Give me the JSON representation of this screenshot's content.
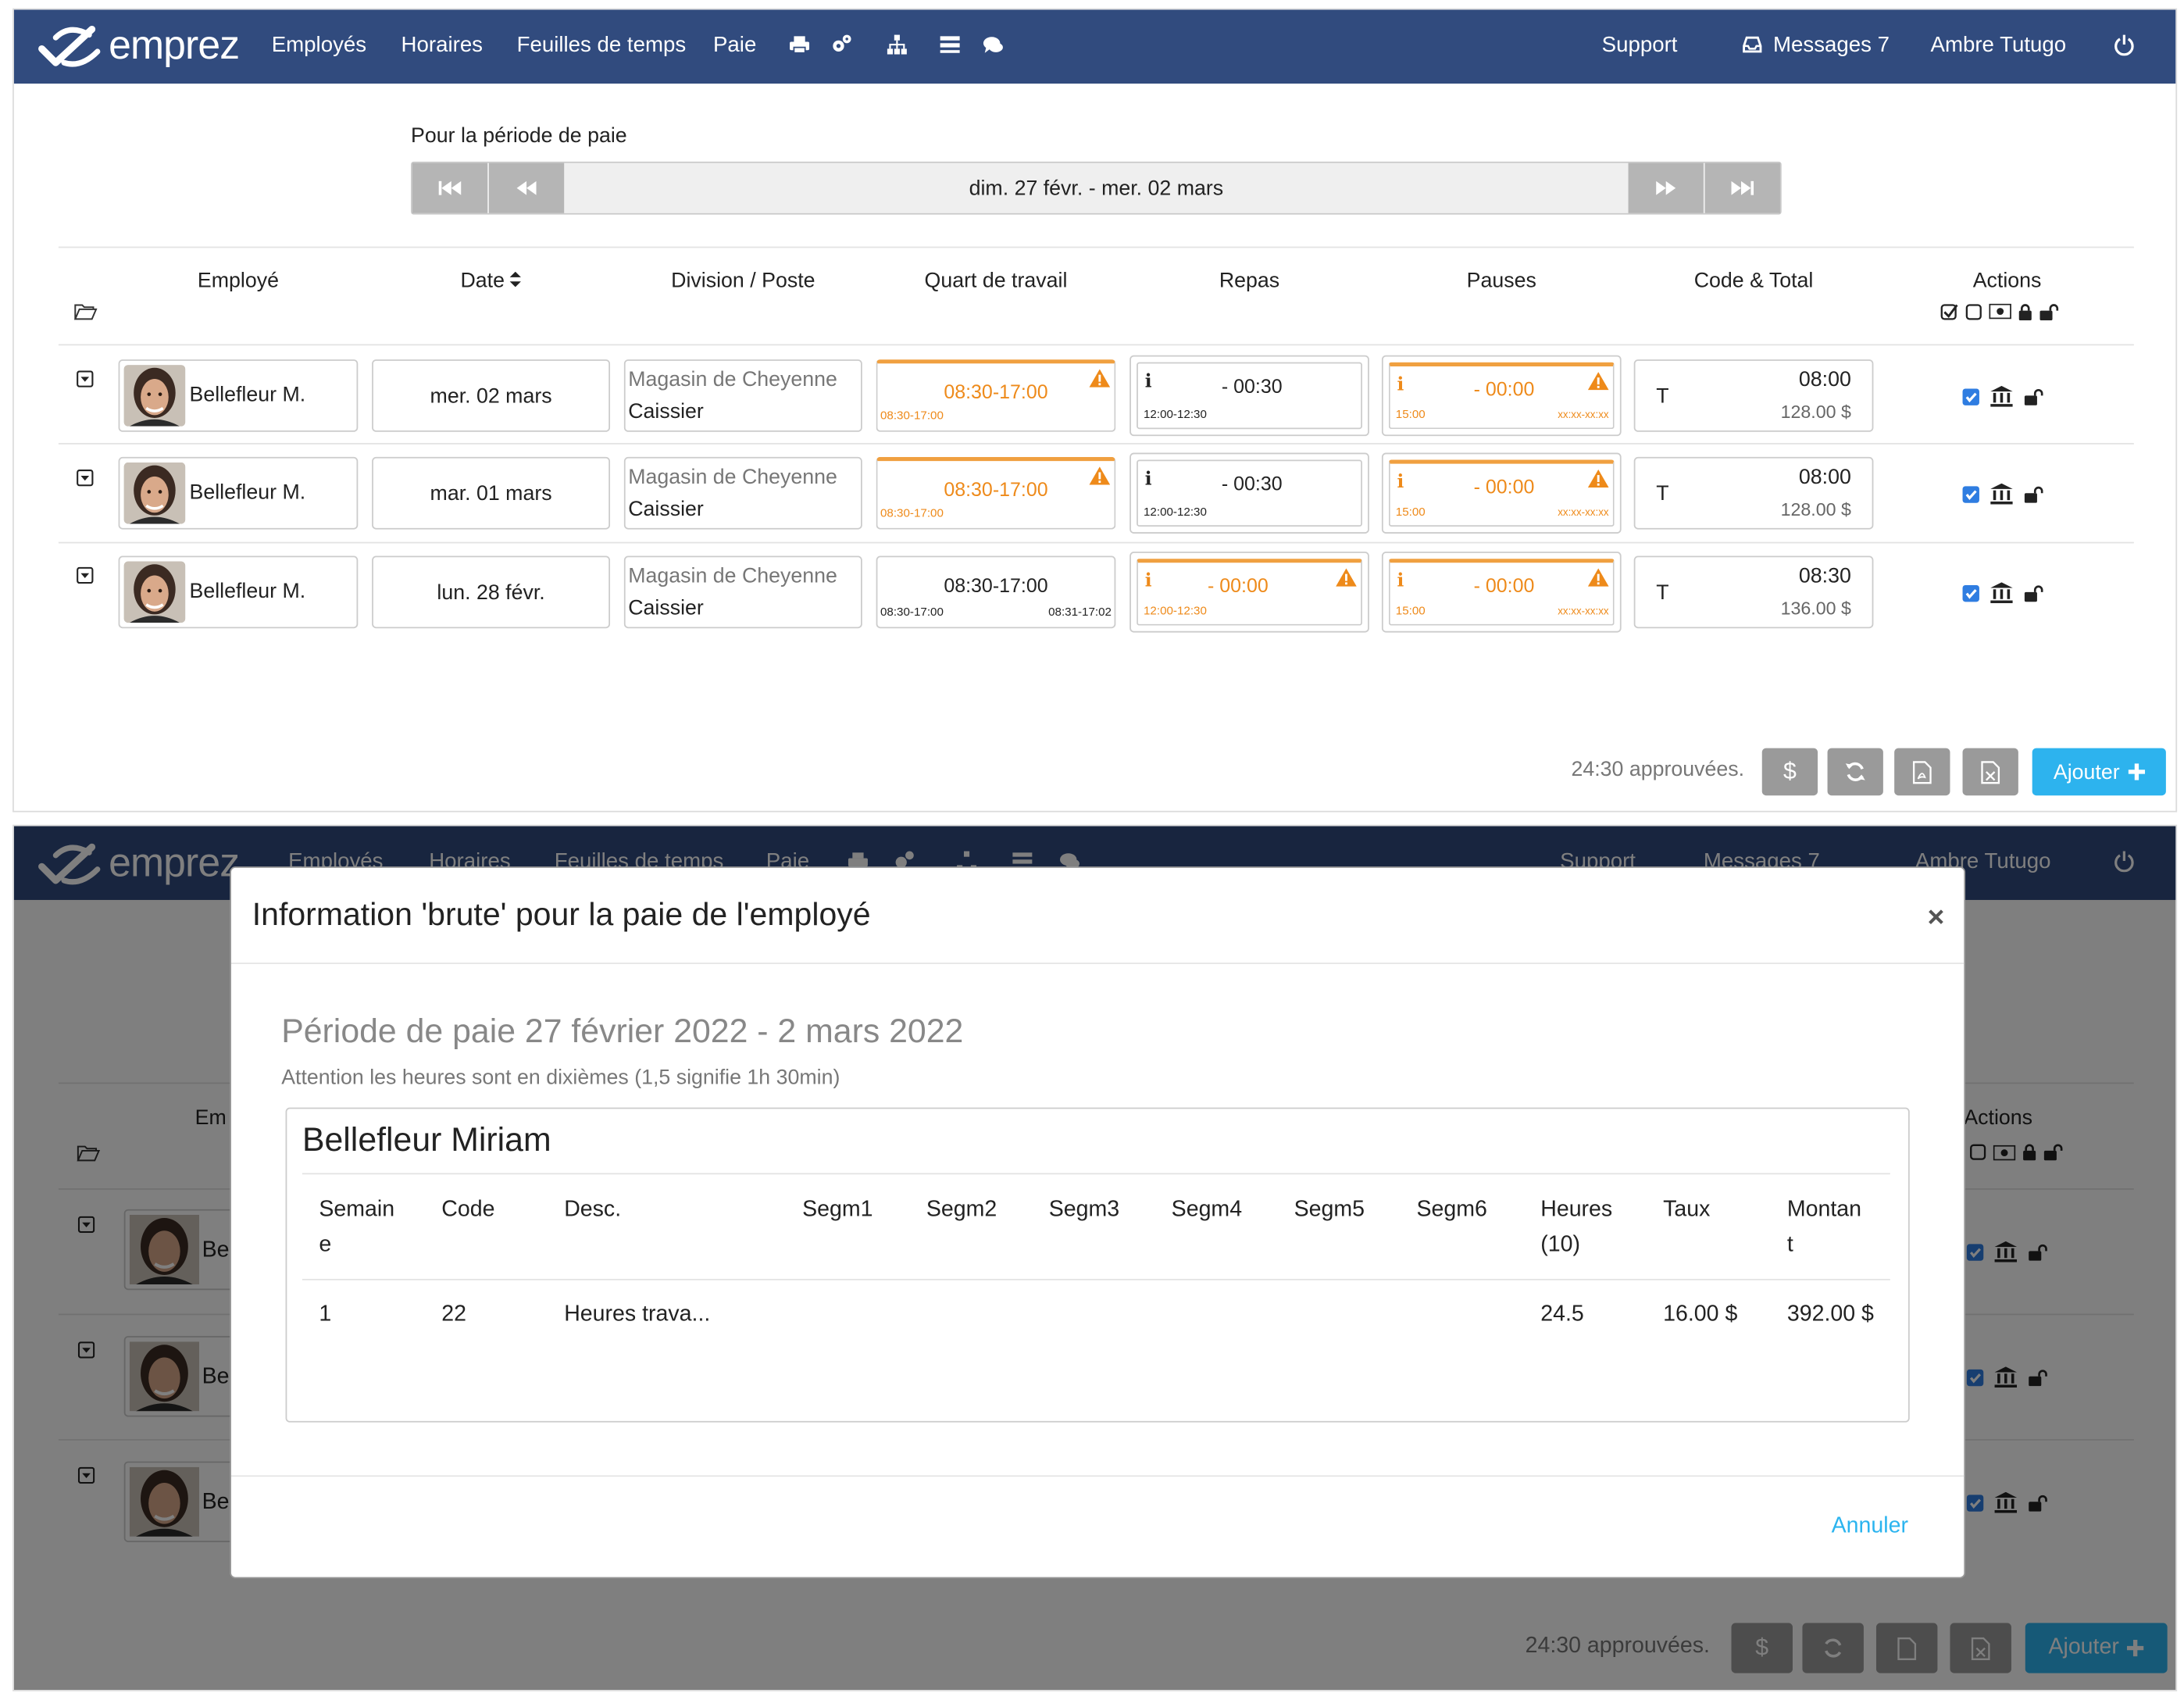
{
  "app": {
    "logo_text": "emprez",
    "nav": {
      "employees": "Employés",
      "schedules": "Horaires",
      "timesheets": "Feuilles de temps",
      "pay": "Paie",
      "support": "Support",
      "messages": "Messages 7",
      "user": "Ambre Tutugo"
    },
    "icons": [
      "print-icon",
      "cogs-icon",
      "sitemap-icon",
      "list-icon",
      "comments-icon",
      "inbox-icon",
      "power-icon"
    ]
  },
  "period": {
    "label": "Pour la période de paie",
    "range": "dim. 27 févr. - mer. 02 mars"
  },
  "table": {
    "headers": {
      "employee": "Employé",
      "date": "Date",
      "division": "Division / Poste",
      "shift": "Quart de travail",
      "meals": "Repas",
      "breaks": "Pauses",
      "code_total": "Code & Total",
      "actions": "Actions"
    },
    "rows": [
      {
        "employee": "Bellefleur M.",
        "date": "mer. 02 mars",
        "division": "Magasin de Cheyenne",
        "post": "Caissier",
        "shift": "08:30-17:00",
        "shift_sched": "08:30-17:00",
        "shift_actual": "",
        "meal": "- 00:30",
        "meal_sched": "12:00-12:30",
        "break": "- 00:00",
        "break_sched": "15:00",
        "break_actual": "xx:xx-xx:xx",
        "code": "T",
        "hours": "08:00",
        "amount": "128.00 $"
      },
      {
        "employee": "Bellefleur M.",
        "date": "mar. 01 mars",
        "division": "Magasin de Cheyenne",
        "post": "Caissier",
        "shift": "08:30-17:00",
        "shift_sched": "08:30-17:00",
        "shift_actual": "",
        "meal": "- 00:30",
        "meal_sched": "12:00-12:30",
        "break": "- 00:00",
        "break_sched": "15:00",
        "break_actual": "xx:xx-xx:xx",
        "code": "T",
        "hours": "08:00",
        "amount": "128.00 $"
      },
      {
        "employee": "Bellefleur M.",
        "date": "lun. 28 févr.",
        "division": "Magasin de Cheyenne",
        "post": "Caissier",
        "shift": "08:30-17:00",
        "shift_sched": "08:30-17:00",
        "shift_actual": "08:31-17:02",
        "meal": "- 00:00",
        "meal_sched": "12:00-12:30",
        "break": "- 00:00",
        "break_sched": "15:00",
        "break_actual": "xx:xx-xx:xx",
        "code": "T",
        "hours": "08:30",
        "amount": "136.00 $"
      }
    ]
  },
  "footer": {
    "approved": "24:30 approuvées.",
    "add_label": "Ajouter"
  },
  "modal": {
    "title": "Information 'brute' pour la paie de l'employé",
    "close": "×",
    "period": "Période de paie 27 février 2022 - 2 mars 2022",
    "note": "Attention les heures sont en dixièmes (1,5 signifie 1h 30min)",
    "employee": "Bellefleur Miriam",
    "columns": [
      "Semain e",
      "Code",
      "Desc.",
      "Segm1",
      "Segm2",
      "Segm3",
      "Segm4",
      "Segm5",
      "Segm6",
      "Heures (10)",
      "Taux",
      "Montan t"
    ],
    "rows": [
      {
        "week": "1",
        "code": "22",
        "desc": "Heures trava...",
        "segm1": "",
        "segm2": "",
        "segm3": "",
        "segm4": "",
        "segm5": "",
        "segm6": "",
        "hours": "24.5",
        "rate": "16.00 $",
        "amount": "392.00 $"
      }
    ],
    "cancel": "Annuler"
  },
  "colors": {
    "navbar": "#314b7e",
    "accent": "#2db3ee",
    "warning": "#ee8a1a",
    "button_gray": "#9a9a9a"
  }
}
